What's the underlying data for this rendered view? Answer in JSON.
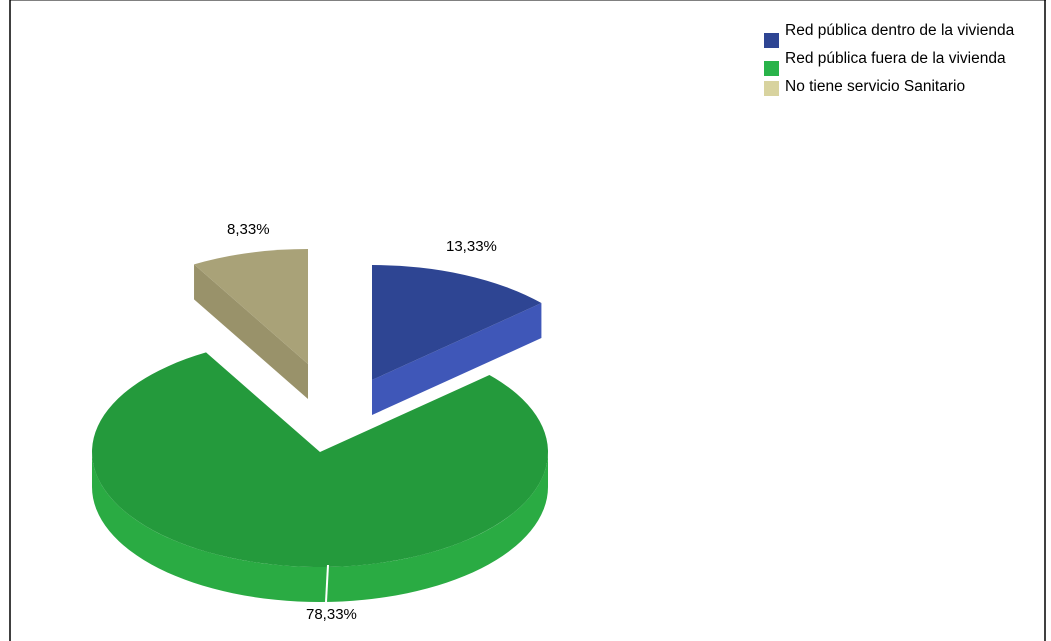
{
  "chart_data": {
    "type": "pie",
    "title": "",
    "slices": [
      {
        "label": "Red pública dentro de la vivienda",
        "value": 13.33,
        "display": "13,33%",
        "color": "#2e4593"
      },
      {
        "label": "Red pública fuera de la vivienda",
        "value": 78.33,
        "display": "78,33%",
        "color": "#249a3c"
      },
      {
        "label": "No tiene servicio Sanitario",
        "value": 8.33,
        "display": "8,33%",
        "color": "#a9a278"
      }
    ],
    "legend_position": "top-right",
    "exploded": true,
    "three_d": true
  }
}
